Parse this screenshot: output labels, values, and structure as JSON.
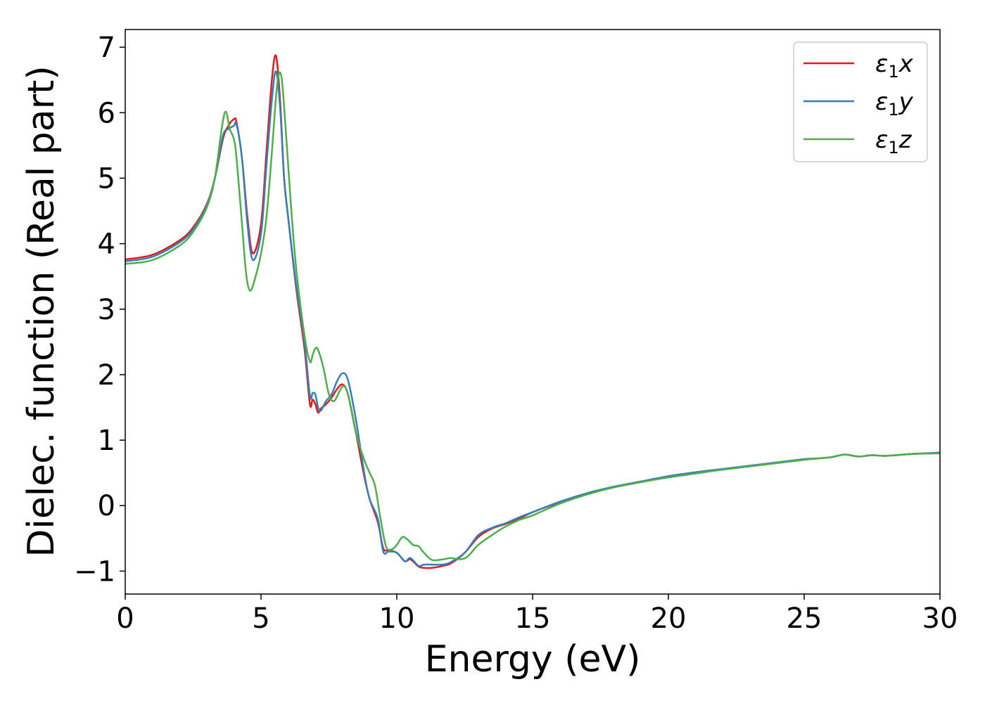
{
  "chart_data": {
    "type": "line",
    "xlabel": "Energy (eV)",
    "ylabel": "Dielec. function (Real part)",
    "xlim": [
      0,
      30
    ],
    "ylim": [
      -1.35,
      7.27
    ],
    "xticks": [
      0,
      5,
      10,
      15,
      20,
      25,
      30
    ],
    "xtick_labels": [
      "0",
      "5",
      "10",
      "15",
      "20",
      "25",
      "30"
    ],
    "yticks": [
      -1,
      0,
      1,
      2,
      3,
      4,
      5,
      6,
      7
    ],
    "ytick_labels": [
      "−1",
      "0",
      "1",
      "2",
      "3",
      "4",
      "5",
      "6",
      "7"
    ],
    "grid": false,
    "legend_position": "top-right",
    "series": [
      {
        "name": "ε₁x",
        "legend_base": "ε",
        "legend_sub": "1",
        "legend_var": "x",
        "color": "#e41a1c",
        "x": [
          0,
          1,
          2,
          2.5,
          3,
          3.3,
          3.6,
          3.8,
          4.0,
          4.1,
          4.3,
          4.5,
          4.7,
          5.0,
          5.2,
          5.4,
          5.55,
          5.7,
          5.85,
          6.0,
          6.3,
          6.6,
          6.8,
          6.9,
          7.0,
          7.1,
          7.2,
          7.4,
          7.6,
          7.8,
          8.0,
          8.2,
          8.5,
          8.8,
          9.0,
          9.3,
          9.5,
          9.7,
          10.0,
          10.3,
          10.5,
          10.8,
          11.0,
          11.3,
          11.7,
          12.0,
          12.5,
          13.0,
          13.5,
          14.0,
          14.5,
          15.0,
          16.0,
          17.0,
          18.0,
          19.0,
          20.0,
          21.0,
          22.0,
          23.0,
          24.0,
          25.0,
          25.5,
          26.0,
          26.5,
          27.0,
          27.5,
          28.0,
          29.0,
          30.0
        ],
        "y": [
          3.76,
          3.83,
          4.05,
          4.25,
          4.6,
          5.0,
          5.6,
          5.8,
          5.9,
          5.85,
          5.3,
          4.4,
          3.85,
          4.3,
          5.4,
          6.5,
          6.87,
          6.2,
          5.0,
          4.4,
          3.3,
          2.4,
          1.55,
          1.62,
          1.55,
          1.42,
          1.48,
          1.55,
          1.65,
          1.78,
          1.85,
          1.7,
          1.1,
          0.45,
          0.1,
          -0.25,
          -0.65,
          -0.68,
          -0.72,
          -0.85,
          -0.82,
          -0.93,
          -0.95,
          -0.95,
          -0.92,
          -0.88,
          -0.72,
          -0.48,
          -0.35,
          -0.28,
          -0.2,
          -0.1,
          0.05,
          0.18,
          0.28,
          0.36,
          0.44,
          0.5,
          0.55,
          0.6,
          0.65,
          0.7,
          0.72,
          0.74,
          0.78,
          0.75,
          0.77,
          0.76,
          0.79,
          0.8
        ]
      },
      {
        "name": "ε₁y",
        "legend_base": "ε",
        "legend_sub": "1",
        "legend_var": "y",
        "color": "#377eb8",
        "x": [
          0,
          1,
          2,
          2.5,
          3,
          3.3,
          3.6,
          3.8,
          4.0,
          4.1,
          4.3,
          4.5,
          4.7,
          5.0,
          5.2,
          5.4,
          5.55,
          5.7,
          5.85,
          6.0,
          6.3,
          6.6,
          6.8,
          6.9,
          7.0,
          7.1,
          7.2,
          7.4,
          7.6,
          7.8,
          8.0,
          8.2,
          8.5,
          8.8,
          9.0,
          9.3,
          9.5,
          9.7,
          10.0,
          10.3,
          10.5,
          10.8,
          11.0,
          11.3,
          11.7,
          12.0,
          12.5,
          13.0,
          13.5,
          14.0,
          14.5,
          15.0,
          16.0,
          17.0,
          18.0,
          19.0,
          20.0,
          21.0,
          22.0,
          23.0,
          24.0,
          25.0,
          25.5,
          26.0,
          26.5,
          27.0,
          27.5,
          28.0,
          29.0,
          30.0
        ],
        "y": [
          3.73,
          3.8,
          4.02,
          4.22,
          4.58,
          5.0,
          5.65,
          5.75,
          5.8,
          5.82,
          5.3,
          4.3,
          3.75,
          4.15,
          5.2,
          6.2,
          6.63,
          6.1,
          5.0,
          4.4,
          3.35,
          2.5,
          1.68,
          1.72,
          1.7,
          1.5,
          1.45,
          1.6,
          1.7,
          1.9,
          2.02,
          1.92,
          1.3,
          0.5,
          0.1,
          -0.2,
          -0.7,
          -0.7,
          -0.72,
          -0.85,
          -0.8,
          -0.92,
          -0.9,
          -0.9,
          -0.9,
          -0.86,
          -0.72,
          -0.45,
          -0.34,
          -0.27,
          -0.18,
          -0.1,
          0.06,
          0.19,
          0.29,
          0.37,
          0.45,
          0.51,
          0.56,
          0.61,
          0.66,
          0.71,
          0.72,
          0.74,
          0.78,
          0.75,
          0.77,
          0.76,
          0.79,
          0.81
        ]
      },
      {
        "name": "ε₁z",
        "legend_base": "ε",
        "legend_sub": "1",
        "legend_var": "z",
        "color": "#4daf4a",
        "x": [
          0,
          1,
          2,
          2.5,
          3,
          3.3,
          3.55,
          3.7,
          3.85,
          4.0,
          4.1,
          4.3,
          4.45,
          4.6,
          4.8,
          5.0,
          5.2,
          5.4,
          5.6,
          5.75,
          5.9,
          6.1,
          6.3,
          6.6,
          6.8,
          6.9,
          7.0,
          7.1,
          7.3,
          7.5,
          7.7,
          8.0,
          8.2,
          8.5,
          8.8,
          9.0,
          9.2,
          9.4,
          9.6,
          9.8,
          10.0,
          10.2,
          10.4,
          10.6,
          10.8,
          11.0,
          11.3,
          11.7,
          12.0,
          12.3,
          12.6,
          13.0,
          13.5,
          14.0,
          14.5,
          15.0,
          16.0,
          17.0,
          18.0,
          19.0,
          20.0,
          21.0,
          22.0,
          23.0,
          24.0,
          25.0,
          25.5,
          26.0,
          26.5,
          27.0,
          27.5,
          28.0,
          29.0,
          30.0
        ],
        "y": [
          3.69,
          3.75,
          3.97,
          4.18,
          4.55,
          5.0,
          5.75,
          6.02,
          5.75,
          5.6,
          5.3,
          4.3,
          3.55,
          3.28,
          3.5,
          3.85,
          4.4,
          5.4,
          6.45,
          6.55,
          5.8,
          4.6,
          3.6,
          2.6,
          2.2,
          2.3,
          2.4,
          2.38,
          2.1,
          1.7,
          1.6,
          1.82,
          1.7,
          1.1,
          0.7,
          0.5,
          0.3,
          -0.2,
          -0.62,
          -0.67,
          -0.6,
          -0.48,
          -0.52,
          -0.6,
          -0.62,
          -0.72,
          -0.83,
          -0.82,
          -0.8,
          -0.82,
          -0.78,
          -0.6,
          -0.45,
          -0.32,
          -0.22,
          -0.15,
          0.03,
          0.17,
          0.28,
          0.36,
          0.43,
          0.49,
          0.55,
          0.6,
          0.65,
          0.7,
          0.72,
          0.74,
          0.78,
          0.75,
          0.77,
          0.76,
          0.79,
          0.8
        ]
      }
    ]
  }
}
